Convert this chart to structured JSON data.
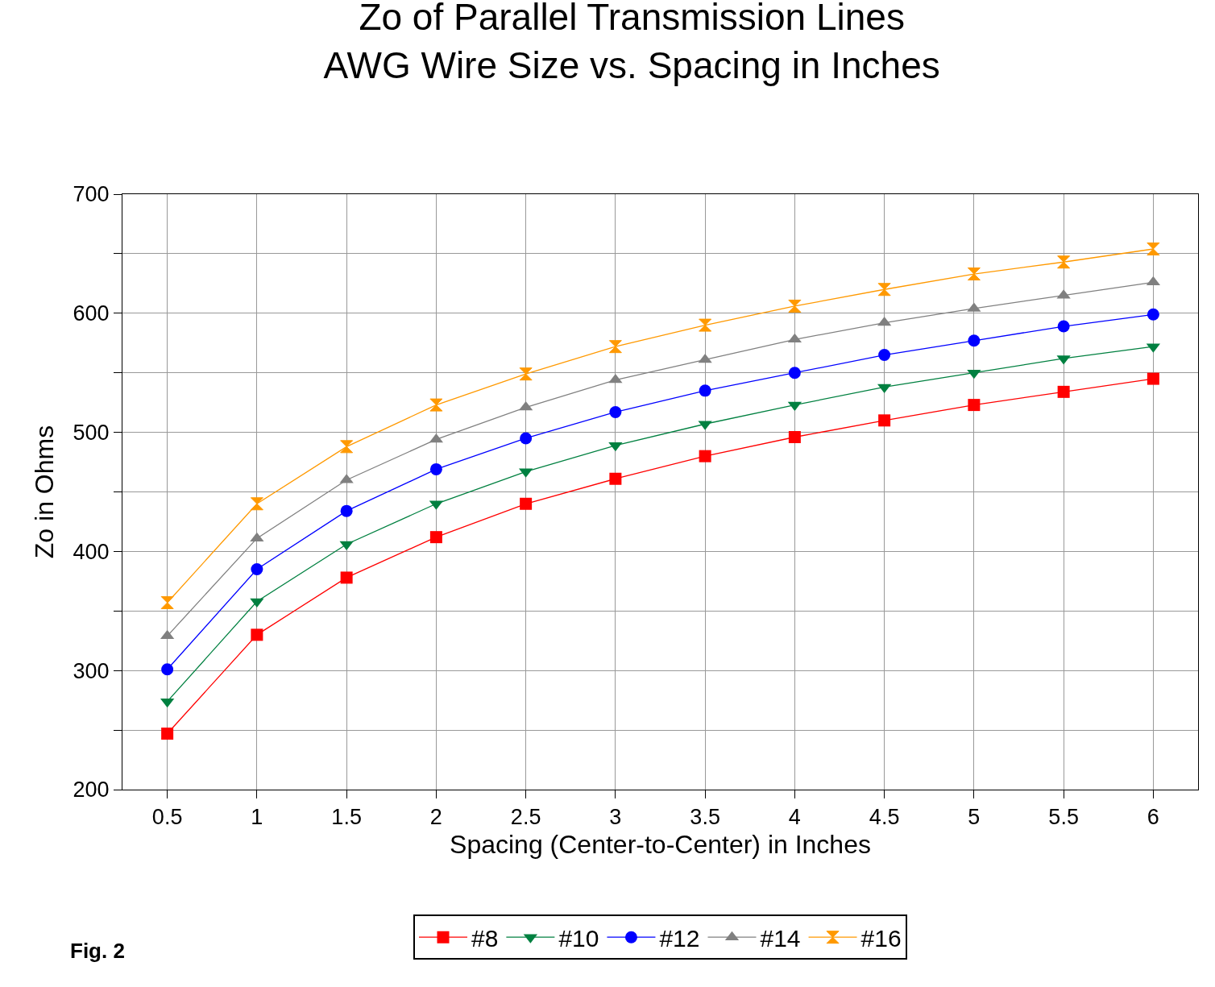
{
  "chart_data": {
    "type": "line",
    "title": "Zo of Parallel Transmission Lines",
    "subtitle": "AWG Wire Size vs. Spacing in Inches",
    "xlabel": "Spacing (Center-to-Center) in Inches",
    "ylabel": "Zo in Ohms",
    "x": [
      0.5,
      1,
      1.5,
      2,
      2.5,
      3,
      3.5,
      4,
      4.5,
      5,
      5.5,
      6
    ],
    "series": [
      {
        "name": "#8",
        "color": "#ff0000",
        "marker": "square",
        "values": [
          247,
          330,
          378,
          412,
          440,
          461,
          480,
          496,
          510,
          523,
          534,
          545
        ]
      },
      {
        "name": "#10",
        "color": "#008040",
        "marker": "triangle-down",
        "values": [
          274,
          358,
          406,
          440,
          467,
          489,
          507,
          523,
          538,
          550,
          562,
          572
        ]
      },
      {
        "name": "#12",
        "color": "#0000ff",
        "marker": "circle",
        "values": [
          301,
          385,
          434,
          469,
          495,
          517,
          535,
          550,
          565,
          577,
          589,
          599
        ]
      },
      {
        "name": "#14",
        "color": "#808080",
        "marker": "triangle",
        "values": [
          329,
          411,
          460,
          494,
          521,
          544,
          561,
          578,
          592,
          604,
          615,
          626
        ]
      },
      {
        "name": "#16",
        "color": "#ff9900",
        "marker": "diamond",
        "values": [
          357,
          440,
          488,
          523,
          549,
          572,
          590,
          606,
          620,
          633,
          643,
          654
        ]
      }
    ],
    "xlim": [
      0.25,
      6.25
    ],
    "xticks": [
      0.5,
      1,
      1.5,
      2,
      2.5,
      3,
      3.5,
      4,
      4.5,
      5,
      5.5,
      6
    ],
    "ylim": [
      200,
      700
    ],
    "yticks": [
      200,
      {
        "value": 250,
        "label": null
      },
      300,
      {
        "value": 350,
        "label": null
      },
      400,
      {
        "value": 450,
        "label": null
      },
      500,
      {
        "value": 550,
        "label": null
      },
      600,
      {
        "value": 650,
        "label": null
      },
      700
    ],
    "grid": true,
    "legend": "bottom",
    "line_style": "solid",
    "annotations": [
      "Fig. 2"
    ]
  }
}
